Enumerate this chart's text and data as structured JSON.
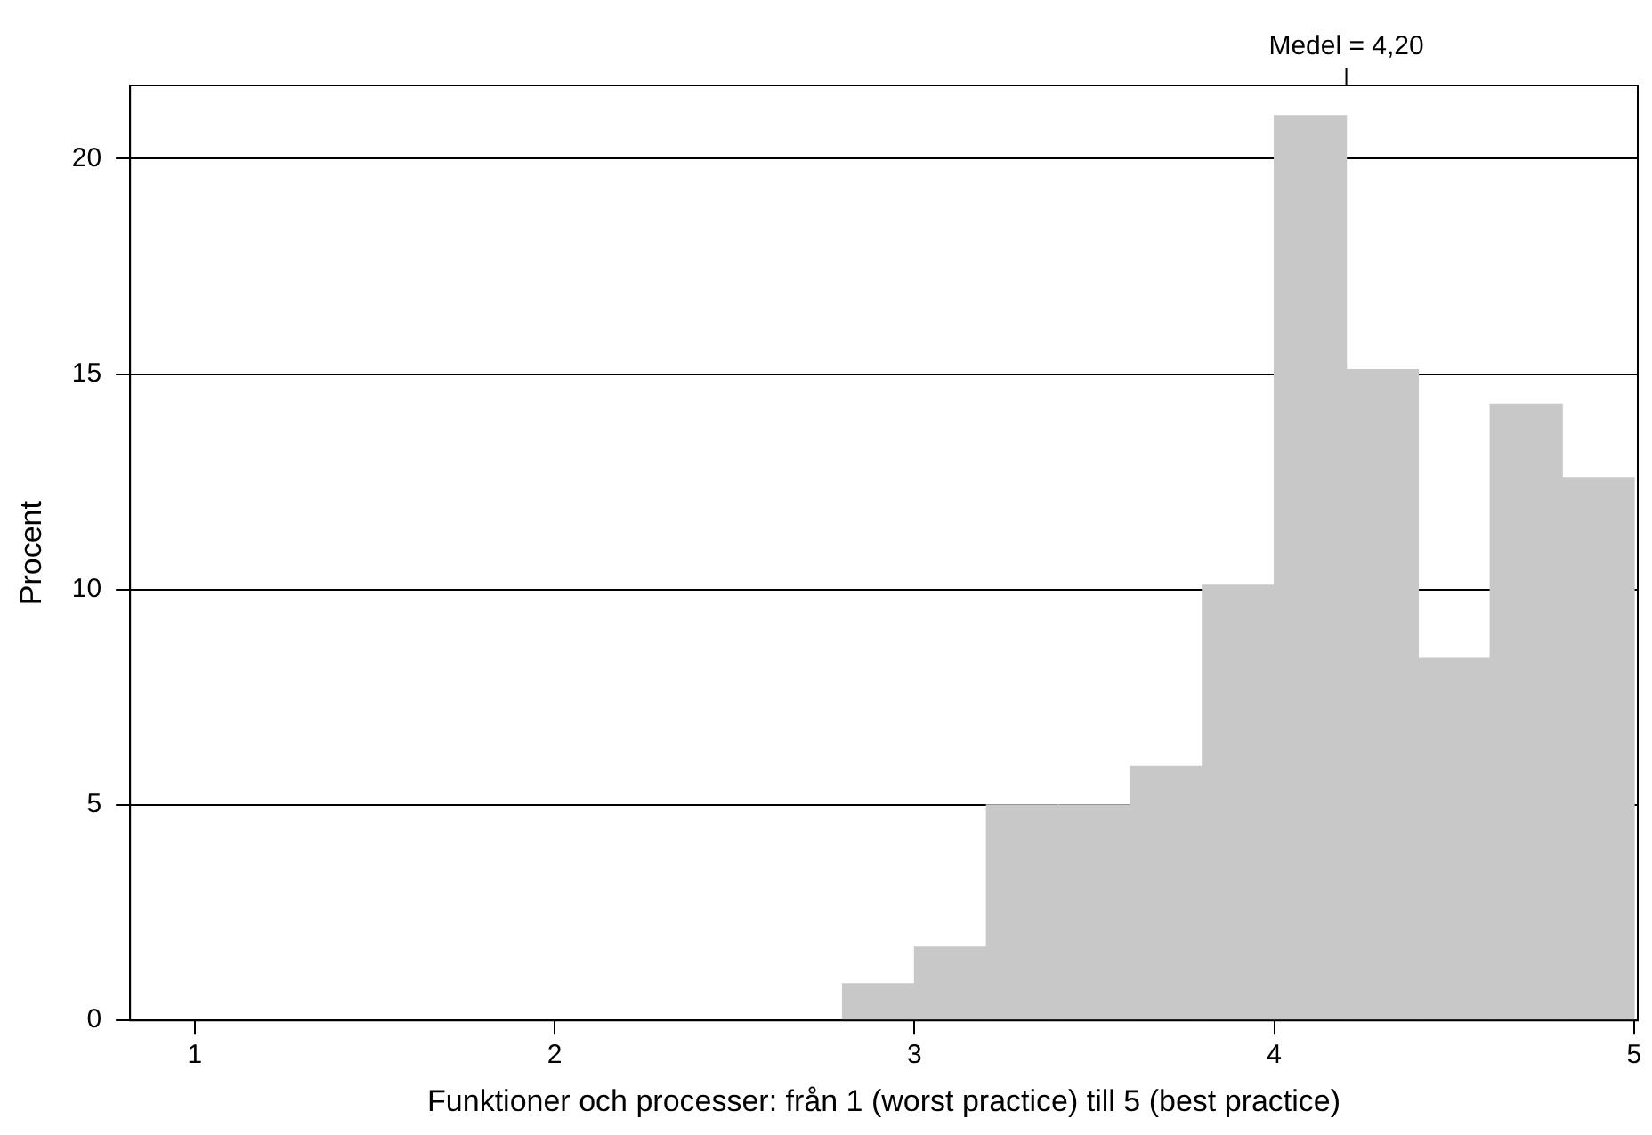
{
  "chart_data": {
    "type": "histogram",
    "xlabel": "Funktioner och processer: från 1 (worst practice) till 5 (best practice)",
    "ylabel": "Procent",
    "bins": [
      2.8,
      3.0,
      3.2,
      3.4,
      3.6,
      3.8,
      4.0,
      4.2,
      4.4,
      4.6,
      4.8,
      5.0
    ],
    "values": [
      0.85,
      1.7,
      5.0,
      5.0,
      5.9,
      10.1,
      21.0,
      15.1,
      8.4,
      14.3,
      12.6
    ],
    "color": "#c8c8c8",
    "xlim": [
      0.82,
      5.01
    ],
    "xticks": [
      1,
      2,
      3,
      4,
      5
    ],
    "ylim": [
      0,
      21.7
    ],
    "yticks": [
      0,
      5,
      10,
      15,
      20
    ],
    "grid": "y",
    "ref_lines": [
      {
        "axis": "x",
        "value": 4.2,
        "label": "Medel = 4,20"
      }
    ]
  }
}
